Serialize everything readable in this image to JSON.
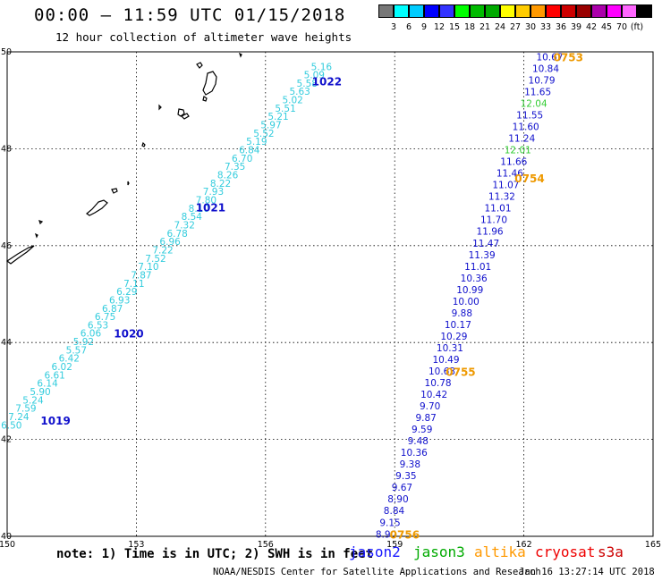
{
  "header": {
    "title": "00:00 — 11:59 UTC 01/15/2018",
    "subtitle": "12 hour collection of altimeter wave heights"
  },
  "colorbar": {
    "colors": [
      "#777777",
      "#00ffff",
      "#00ccff",
      "#0000ff",
      "#3333ff",
      "#00ff00",
      "#00bb00",
      "#00aa00",
      "#ffff00",
      "#ffcc00",
      "#ff9900",
      "#ff0000",
      "#cc0000",
      "#990000",
      "#aa00aa",
      "#ff00ff",
      "#ff66ff",
      "#000000"
    ],
    "labels": [
      "3",
      "6",
      "9",
      "12",
      "15",
      "18",
      "21",
      "24",
      "27",
      "30",
      "33",
      "36",
      "39",
      "42",
      "45",
      "70",
      "(ft)"
    ]
  },
  "axes": {
    "x_labels": [
      "150",
      "153",
      "156",
      "159",
      "162",
      "165"
    ],
    "y_labels": [
      "50",
      "48",
      "46",
      "44",
      "42",
      "40"
    ]
  },
  "chart_data": {
    "type": "scatter",
    "x_range": [
      150,
      165
    ],
    "y_range": [
      40,
      50
    ],
    "units": "ft",
    "tracks": [
      {
        "name": "jason2-west",
        "color": "#33ccdd",
        "start": [
          150.1,
          42.3
        ],
        "end": [
          157.3,
          49.7
        ],
        "values": [
          "6.50",
          "7.24",
          "7.59",
          "5.24",
          "5.90",
          "6.14",
          "6.61",
          "6.02",
          "6.42",
          "5.57",
          "5.92",
          "6.06",
          "6.53",
          "6.75",
          "6.87",
          "6.93",
          "6.29",
          "7.11",
          "7.87",
          "7.10",
          "7.52",
          "7.22",
          "6.96",
          "6.78",
          "7.32",
          "8.54",
          "8.10",
          "7.80",
          "7.93",
          "8.22",
          "8.26",
          "7.35",
          "6.70",
          "6.84",
          "5.19",
          "5.52",
          "5.97",
          "5.21",
          "5.51",
          "5.02",
          "5.63",
          "5.58",
          "5.09",
          "5.16"
        ],
        "passes": [
          {
            "label": "1019",
            "lon": 151.0,
            "lat": 42.4
          },
          {
            "label": "1020",
            "lon": 152.7,
            "lat": 44.2
          },
          {
            "label": "1021",
            "lon": 154.6,
            "lat": 46.8
          },
          {
            "label": "1022",
            "lon": 157.3,
            "lat": 49.4
          }
        ]
      },
      {
        "name": "jason2-east",
        "color": "#1010cc",
        "start": [
          158.8,
          40.05
        ],
        "end": [
          162.6,
          49.9
        ],
        "values": [
          "8.90",
          "9.15",
          "8.84",
          "8.90",
          "9.67",
          "9.35",
          "9.38",
          "10.36",
          "9.48",
          "9.59",
          "9.87",
          "9.70",
          "10.42",
          "10.78",
          "10.63",
          "10.49",
          "10.31",
          "10.29",
          "10.17",
          "9.88",
          "10.00",
          "10.99",
          "10.36",
          "11.01",
          "11.39",
          "11.47",
          "11.96",
          "11.70",
          "11.01",
          "11.32",
          "11.07",
          "11.46",
          "11.66",
          "12.01",
          "11.24",
          "11.60",
          "11.55",
          "12.04",
          "11.65",
          "10.79",
          "10.84",
          "10.67"
        ],
        "highlight": [
          "12.01",
          "12.04"
        ],
        "highlight_color": "#33cc33",
        "passes": [
          {
            "label": "0753",
            "lon": 162.7,
            "lat": 49.9
          },
          {
            "label": "0754",
            "lon": 161.8,
            "lat": 47.4
          },
          {
            "label": "0755",
            "lon": 160.2,
            "lat": 43.4
          },
          {
            "label": "0756",
            "lon": 158.9,
            "lat": 40.05
          }
        ]
      }
    ]
  },
  "footer": {
    "note": "note: 1) Time is in UTC; 2) SWH is in feet",
    "satellites": [
      {
        "name": "jason2",
        "color": "#1a1aff"
      },
      {
        "name": "jason3",
        "color": "#00aa00"
      },
      {
        "name": "altika",
        "color": "#ff9900"
      },
      {
        "name": "cryosat",
        "color": "#ee0000"
      },
      {
        "name": "s3a",
        "color": "#cc0000"
      }
    ],
    "credit": "NOAA/NESDIS Center for Satellite Applications and Research",
    "generated": "Jan 16 13:27:14 UTC 2018"
  },
  "colors": {
    "pass_label_west": "#1010cc",
    "pass_label_east": "#ee9900"
  }
}
